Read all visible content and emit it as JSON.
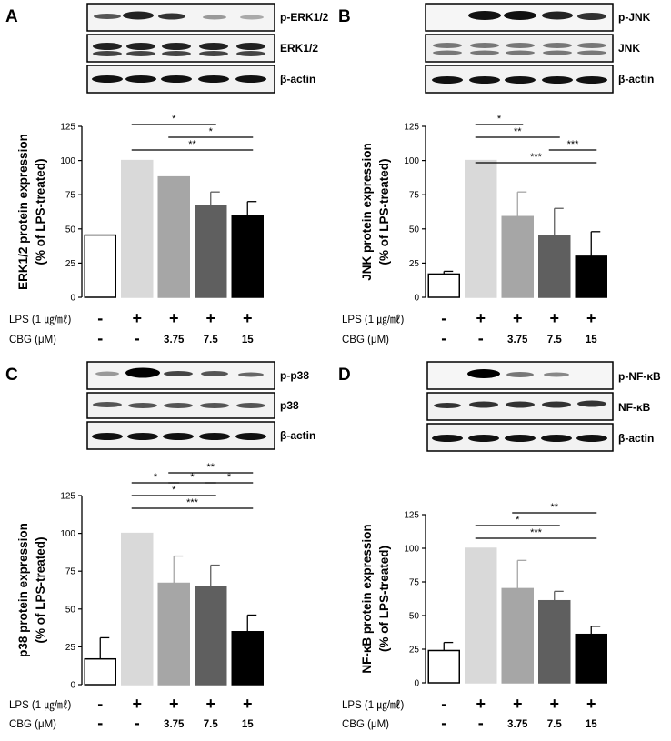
{
  "chart_data": [
    {
      "panel": "A",
      "type": "bar",
      "categories": [
        "1",
        "2",
        "3",
        "4",
        "5"
      ],
      "values": [
        45.5,
        100,
        88,
        67,
        60
      ],
      "errors": [
        0,
        0,
        0,
        10,
        10
      ],
      "bar_colors": [
        "#ffffff",
        "#d9d9d9",
        "#a6a6a6",
        "#5f5f5f",
        "#000000"
      ],
      "ylabel_line1": "ERK1/2 protein expression",
      "ylabel_line2": "(% of LPS-treated)",
      "ylim": [
        0,
        125
      ],
      "yticks": [
        "0",
        "25",
        "50",
        "75",
        "100",
        "125"
      ],
      "blot_labels": [
        "p-ERK1/2",
        "ERK1/2",
        "β-actin"
      ],
      "significance": [
        {
          "from": 1,
          "to": 3,
          "label": "*"
        },
        {
          "from": 2,
          "to": 4,
          "label": "*"
        },
        {
          "from": 1,
          "to": 4,
          "label": "**"
        }
      ],
      "treatment_rows": [
        {
          "label": "LPS (1 ㎍/㎖)",
          "values": [
            "-",
            "+",
            "+",
            "+",
            "+"
          ]
        },
        {
          "label": "CBG (μM)",
          "values": [
            "-",
            "-",
            "3.75",
            "7.5",
            "15"
          ]
        }
      ]
    },
    {
      "panel": "B",
      "type": "bar",
      "categories": [
        "1",
        "2",
        "3",
        "4",
        "5"
      ],
      "values": [
        17,
        100,
        59,
        45,
        30
      ],
      "errors": [
        2,
        0,
        18,
        20,
        18
      ],
      "bar_colors": [
        "#ffffff",
        "#d9d9d9",
        "#a6a6a6",
        "#5f5f5f",
        "#000000"
      ],
      "ylabel_line1": "JNK protein expression",
      "ylabel_line2": "(% of LPS-treated)",
      "ylim": [
        0,
        125
      ],
      "yticks": [
        "0",
        "25",
        "50",
        "75",
        "100",
        "125"
      ],
      "blot_labels": [
        "p-JNK",
        "JNK",
        "β-actin"
      ],
      "significance": [
        {
          "from": 1,
          "to": 2,
          "label": "*"
        },
        {
          "from": 1,
          "to": 3,
          "label": "**"
        },
        {
          "from": 3,
          "to": 4,
          "label": "***"
        },
        {
          "from": 1,
          "to": 4,
          "label": "***"
        }
      ],
      "treatment_rows": [
        {
          "label": "LPS (1 ㎍/㎖)",
          "values": [
            "-",
            "+",
            "+",
            "+",
            "+"
          ]
        },
        {
          "label": "CBG (μM)",
          "values": [
            "-",
            "-",
            "3.75",
            "7.5",
            "15"
          ]
        }
      ]
    },
    {
      "panel": "C",
      "type": "bar",
      "categories": [
        "1",
        "2",
        "3",
        "4",
        "5"
      ],
      "values": [
        17,
        100,
        67,
        65,
        35
      ],
      "errors": [
        14,
        0,
        18,
        14,
        11
      ],
      "bar_colors": [
        "#ffffff",
        "#d9d9d9",
        "#a6a6a6",
        "#5f5f5f",
        "#000000"
      ],
      "ylabel_line1": "p38 protein expression",
      "ylabel_line2": "(% of LPS-treated)",
      "ylim": [
        0,
        125
      ],
      "yticks": [
        "0",
        "25",
        "50",
        "75",
        "100",
        "125"
      ],
      "blot_labels": [
        "p-p38",
        "p38",
        "β-actin"
      ],
      "significance": [
        {
          "from": 1,
          "to": 2,
          "label": "*"
        },
        {
          "from": 2,
          "to": 3,
          "label": "*"
        },
        {
          "from": 3,
          "to": 4,
          "label": "*"
        },
        {
          "from": 2,
          "to": 4,
          "label": "**"
        },
        {
          "from": 1,
          "to": 3,
          "label": "*"
        },
        {
          "from": 1,
          "to": 4,
          "label": "***"
        }
      ],
      "treatment_rows": [
        {
          "label": "LPS (1 ㎍/㎖)",
          "values": [
            "-",
            "+",
            "+",
            "+",
            "+"
          ]
        },
        {
          "label": "CBG (μM)",
          "values": [
            "-",
            "-",
            "3.75",
            "7.5",
            "15"
          ]
        }
      ]
    },
    {
      "panel": "D",
      "type": "bar",
      "categories": [
        "1",
        "2",
        "3",
        "4",
        "5"
      ],
      "values": [
        24,
        100,
        70,
        61,
        36
      ],
      "errors": [
        6,
        0,
        21,
        7,
        6
      ],
      "bar_colors": [
        "#ffffff",
        "#d9d9d9",
        "#a6a6a6",
        "#5f5f5f",
        "#000000"
      ],
      "ylabel_line1": "NF-κB protein expression",
      "ylabel_line2": "(% of LPS-treated)",
      "ylim": [
        0,
        125
      ],
      "yticks": [
        "0",
        "25",
        "50",
        "75",
        "100",
        "125"
      ],
      "blot_labels": [
        "p-NF-κB",
        "NF-κB",
        "β-actin"
      ],
      "significance": [
        {
          "from": 2,
          "to": 4,
          "label": "**"
        },
        {
          "from": 1,
          "to": 3,
          "label": "*"
        },
        {
          "from": 1,
          "to": 4,
          "label": "***"
        }
      ],
      "treatment_rows": [
        {
          "label": "LPS (1 ㎍/㎖)",
          "values": [
            "-",
            "+",
            "+",
            "+",
            "+"
          ]
        },
        {
          "label": "CBG (μM)",
          "values": [
            "-",
            "-",
            "3.75",
            "7.5",
            "15"
          ]
        }
      ]
    }
  ]
}
